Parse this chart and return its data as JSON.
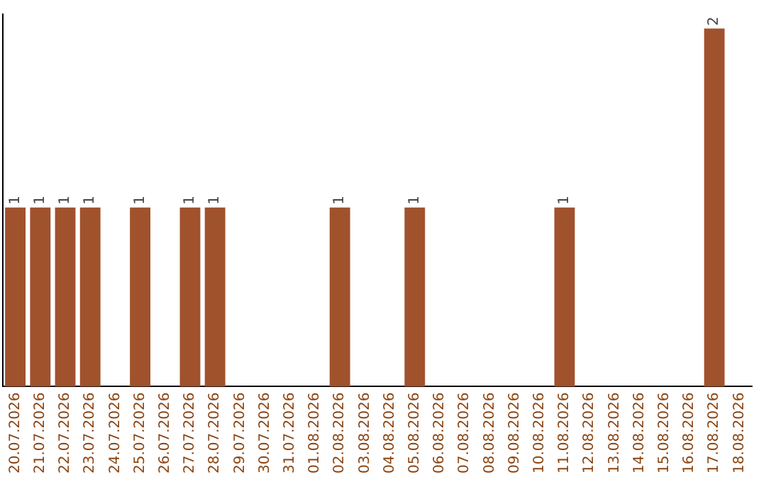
{
  "chart_data": {
    "type": "bar",
    "categories": [
      "20.07.2026",
      "21.07.2026",
      "22.07.2026",
      "23.07.2026",
      "24.07.2026",
      "25.07.2026",
      "26.07.2026",
      "27.07.2026",
      "28.07.2026",
      "29.07.2026",
      "30.07.2026",
      "31.07.2026",
      "01.08.2026",
      "02.08.2026",
      "03.08.2026",
      "04.08.2026",
      "05.08.2026",
      "06.08.2026",
      "07.08.2026",
      "08.08.2026",
      "09.08.2026",
      "10.08.2026",
      "11.08.2026",
      "12.08.2026",
      "13.08.2026",
      "14.08.2026",
      "15.08.2026",
      "16.08.2026",
      "17.08.2026",
      "18.08.2026"
    ],
    "values": [
      1,
      1,
      1,
      1,
      0,
      1,
      0,
      1,
      1,
      0,
      0,
      0,
      0,
      1,
      0,
      0,
      1,
      0,
      0,
      0,
      0,
      0,
      1,
      0,
      0,
      0,
      0,
      0,
      2,
      0
    ],
    "value_labels": [
      "1",
      "1",
      "1",
      "1",
      null,
      "1",
      null,
      "1",
      "1",
      null,
      null,
      null,
      null,
      "1",
      null,
      null,
      "1",
      null,
      null,
      null,
      null,
      null,
      "1",
      null,
      null,
      null,
      null,
      null,
      "2",
      null
    ],
    "color": "#a0522d",
    "ylim": [
      0,
      2.08
    ],
    "tick_labels": "x",
    "grid": false,
    "legend": false
  }
}
